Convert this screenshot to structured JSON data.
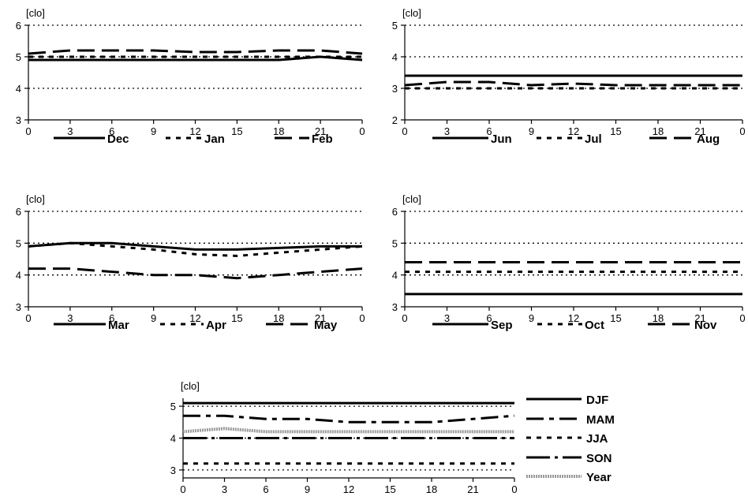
{
  "chart_data": [
    {
      "type": "line",
      "unit_label": "[clo]",
      "x": [
        0,
        3,
        6,
        9,
        12,
        15,
        18,
        21,
        24
      ],
      "x_tick_labels": [
        "0",
        "3",
        "6",
        "9",
        "12",
        "15",
        "18",
        "21",
        "0"
      ],
      "xlim": [
        0,
        24
      ],
      "ylim": [
        3,
        6
      ],
      "y_ticks": [
        3,
        4,
        5,
        6
      ],
      "grid": "dotted horizontal",
      "legend_position": "bottom",
      "series": [
        {
          "name": "Dec",
          "style": "solid",
          "values": [
            4.9,
            4.9,
            4.9,
            4.9,
            4.9,
            4.9,
            4.9,
            5.0,
            4.9
          ]
        },
        {
          "name": "Jan",
          "style": "dotted",
          "values": [
            5.0,
            5.0,
            5.0,
            5.0,
            5.0,
            5.0,
            5.0,
            5.0,
            5.0
          ]
        },
        {
          "name": "Feb",
          "style": "long-dash",
          "values": [
            5.1,
            5.2,
            5.2,
            5.2,
            5.15,
            5.15,
            5.2,
            5.2,
            5.1
          ]
        }
      ]
    },
    {
      "type": "line",
      "unit_label": "[clo]",
      "x": [
        0,
        3,
        6,
        9,
        12,
        15,
        18,
        21,
        24
      ],
      "x_tick_labels": [
        "0",
        "3",
        "6",
        "9",
        "12",
        "15",
        "18",
        "21",
        "0"
      ],
      "xlim": [
        0,
        24
      ],
      "ylim": [
        2,
        5
      ],
      "y_ticks": [
        2,
        3,
        4,
        5
      ],
      "grid": "dotted horizontal",
      "legend_position": "bottom",
      "series": [
        {
          "name": "Jun",
          "style": "solid",
          "values": [
            3.4,
            3.4,
            3.4,
            3.4,
            3.4,
            3.4,
            3.4,
            3.4,
            3.4
          ]
        },
        {
          "name": "Jul",
          "style": "dotted",
          "values": [
            3.0,
            3.0,
            3.0,
            3.0,
            3.0,
            3.0,
            3.0,
            3.0,
            3.0
          ]
        },
        {
          "name": "Aug",
          "style": "long-dash",
          "values": [
            3.1,
            3.2,
            3.2,
            3.1,
            3.15,
            3.1,
            3.1,
            3.1,
            3.1
          ]
        }
      ]
    },
    {
      "type": "line",
      "unit_label": "[clo]",
      "x": [
        0,
        3,
        6,
        9,
        12,
        15,
        18,
        21,
        24
      ],
      "x_tick_labels": [
        "0",
        "3",
        "6",
        "9",
        "12",
        "15",
        "18",
        "21",
        "0"
      ],
      "xlim": [
        0,
        24
      ],
      "ylim": [
        3,
        6
      ],
      "y_ticks": [
        3,
        4,
        5,
        6
      ],
      "grid": "dotted horizontal",
      "legend_position": "bottom",
      "series": [
        {
          "name": "Mar",
          "style": "solid",
          "values": [
            4.9,
            5.0,
            5.0,
            4.9,
            4.8,
            4.8,
            4.85,
            4.9,
            4.9
          ]
        },
        {
          "name": "Apr",
          "style": "dotted",
          "values": [
            4.9,
            5.0,
            4.9,
            4.8,
            4.65,
            4.6,
            4.7,
            4.8,
            4.9
          ]
        },
        {
          "name": "May",
          "style": "long-dash",
          "values": [
            4.2,
            4.2,
            4.1,
            4.0,
            4.0,
            3.9,
            4.0,
            4.1,
            4.2
          ]
        }
      ]
    },
    {
      "type": "line",
      "unit_label": "[clo]",
      "x": [
        0,
        3,
        6,
        9,
        12,
        15,
        18,
        21,
        24
      ],
      "x_tick_labels": [
        "0",
        "3",
        "6",
        "9",
        "12",
        "15",
        "18",
        "21",
        "0"
      ],
      "xlim": [
        0,
        24
      ],
      "ylim": [
        3,
        6
      ],
      "y_ticks": [
        3,
        4,
        5,
        6
      ],
      "grid": "dotted horizontal",
      "legend_position": "bottom",
      "series": [
        {
          "name": "Sep",
          "style": "solid",
          "values": [
            3.4,
            3.4,
            3.4,
            3.4,
            3.4,
            3.4,
            3.4,
            3.4,
            3.4
          ]
        },
        {
          "name": "Oct",
          "style": "dotted",
          "values": [
            4.1,
            4.1,
            4.1,
            4.1,
            4.1,
            4.1,
            4.1,
            4.1,
            4.1
          ]
        },
        {
          "name": "Nov",
          "style": "long-dash",
          "values": [
            4.4,
            4.4,
            4.4,
            4.4,
            4.4,
            4.4,
            4.4,
            4.4,
            4.4
          ]
        }
      ]
    },
    {
      "type": "line",
      "unit_label": "[clo]",
      "x": [
        0,
        3,
        6,
        9,
        12,
        15,
        18,
        21,
        24
      ],
      "x_tick_labels": [
        "0",
        "3",
        "6",
        "9",
        "12",
        "15",
        "18",
        "21",
        "0"
      ],
      "xlim": [
        0,
        24
      ],
      "ylim": [
        2.75,
        5.25
      ],
      "y_ticks": [
        3,
        4,
        5
      ],
      "grid": "dotted horizontal",
      "legend_position": "right",
      "series": [
        {
          "name": "DJF",
          "style": "solid",
          "values": [
            5.1,
            5.1,
            5.1,
            5.1,
            5.1,
            5.1,
            5.1,
            5.1,
            5.1
          ]
        },
        {
          "name": "MAM",
          "style": "dash-dot",
          "values": [
            4.7,
            4.7,
            4.6,
            4.6,
            4.5,
            4.5,
            4.5,
            4.6,
            4.7
          ]
        },
        {
          "name": "JJA",
          "style": "dotted",
          "values": [
            3.2,
            3.2,
            3.2,
            3.2,
            3.2,
            3.2,
            3.2,
            3.2,
            3.2
          ]
        },
        {
          "name": "SON",
          "style": "long-dash-dot",
          "values": [
            4.0,
            4.0,
            4.0,
            4.0,
            4.0,
            4.0,
            4.0,
            4.0,
            4.0
          ]
        },
        {
          "name": "Year",
          "style": "hatched",
          "values": [
            4.2,
            4.3,
            4.2,
            4.2,
            4.2,
            4.2,
            4.2,
            4.2,
            4.2
          ]
        }
      ]
    }
  ]
}
